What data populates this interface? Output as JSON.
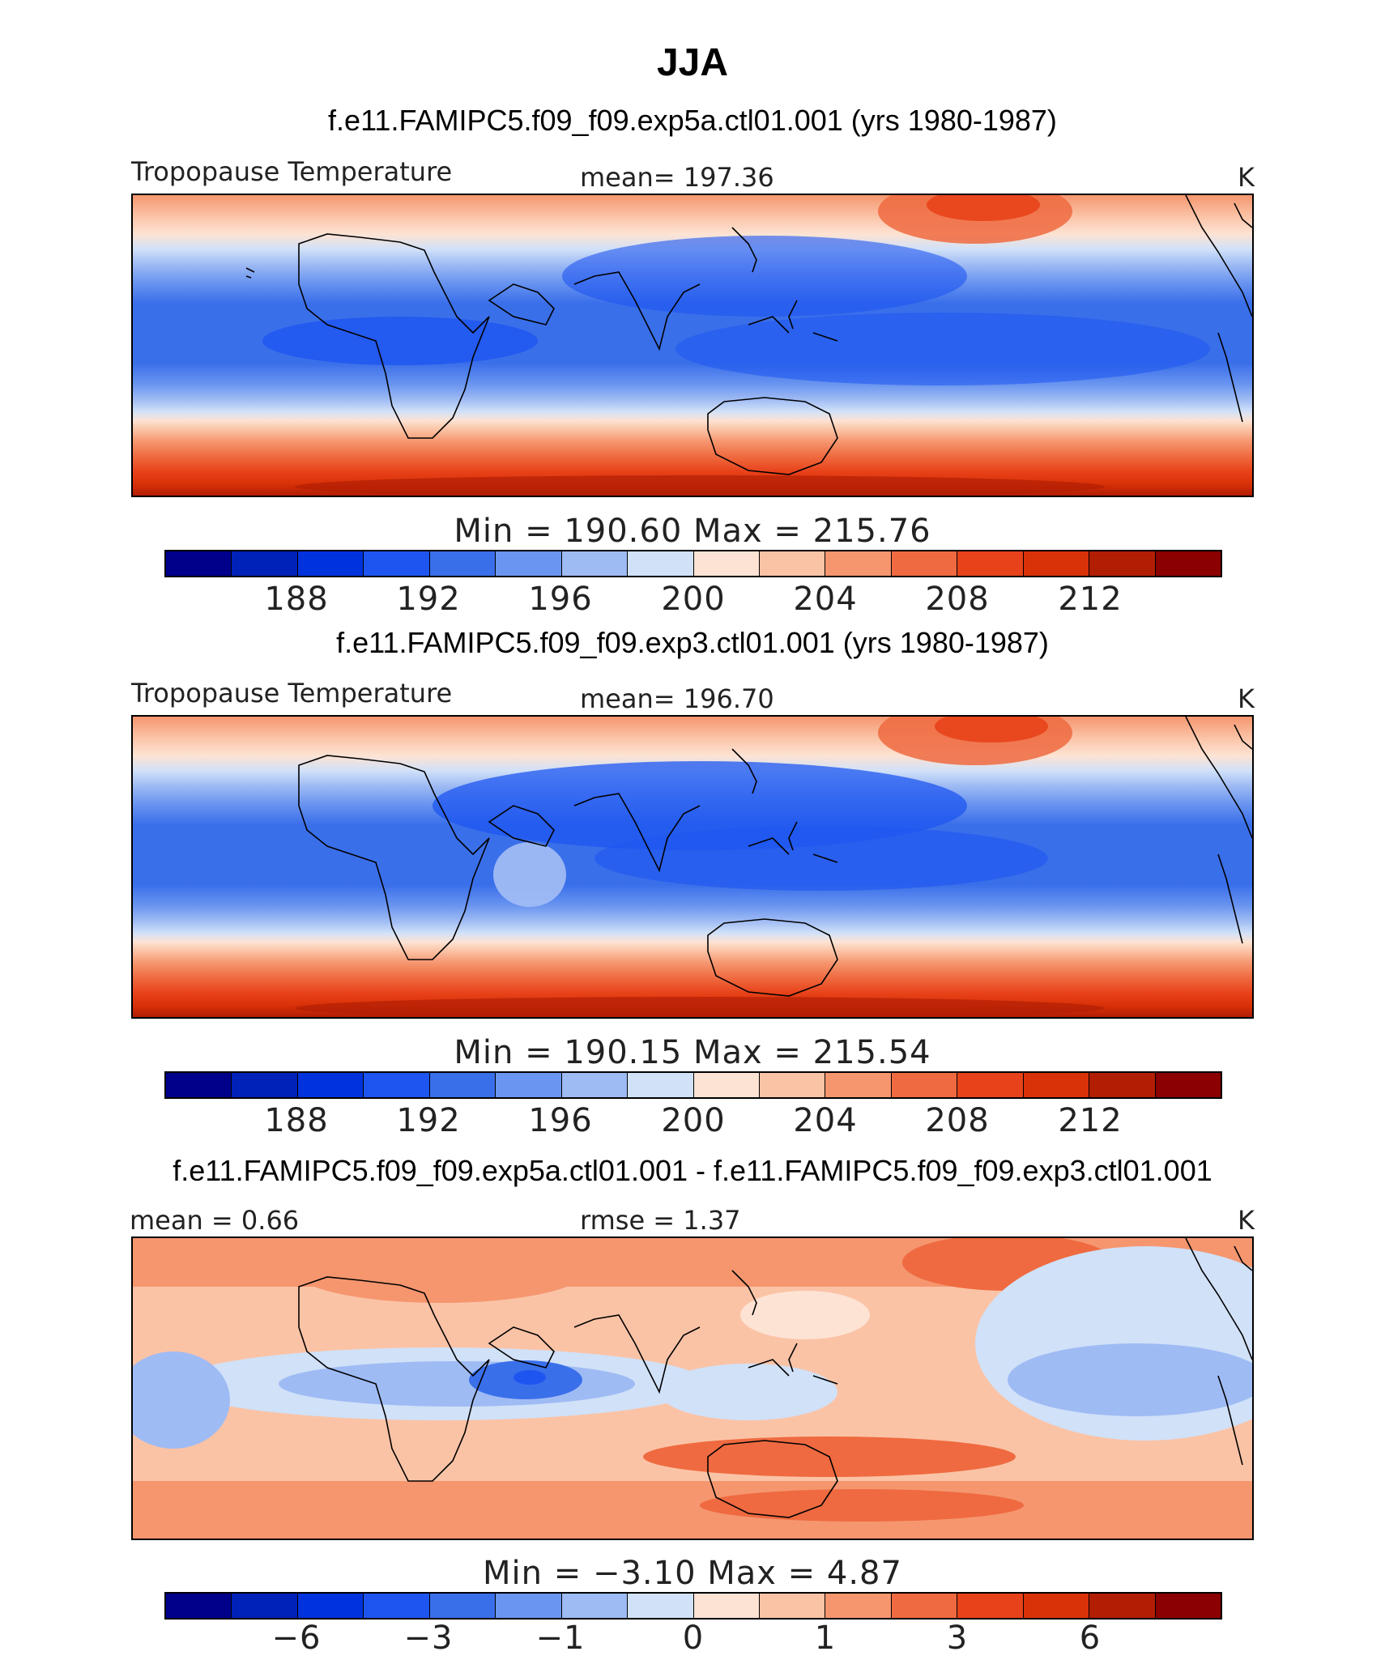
{
  "figure_title": "JJA",
  "panels": [
    {
      "case_title": "f.e11.FAMIPC5.f09_f09.exp5a.ctl01.001 (yrs 1980-1987)",
      "left_label": "Tropopause Temperature",
      "center_label": "mean=  197.36",
      "right_label": "K",
      "minmax": "Min  =  190.60  Max  =  215.76",
      "ticks": [
        "188",
        "192",
        "196",
        "200",
        "204",
        "208",
        "212"
      ]
    },
    {
      "case_title": "f.e11.FAMIPC5.f09_f09.exp3.ctl01.001 (yrs 1980-1987)",
      "left_label": "Tropopause Temperature",
      "center_label": "mean=  196.70",
      "right_label": "K",
      "minmax": "Min  =  190.15  Max  =  215.54",
      "ticks": [
        "188",
        "192",
        "196",
        "200",
        "204",
        "208",
        "212"
      ]
    },
    {
      "case_title": "f.e11.FAMIPC5.f09_f09.exp5a.ctl01.001 - f.e11.FAMIPC5.f09_f09.exp3.ctl01.001",
      "left_label": "mean  =    0.66",
      "center_label": "rmse  =    1.37",
      "right_label": "K",
      "minmax": "Min  =   −3.10  Max  =     4.87",
      "ticks": [
        "−6",
        "−3",
        "−1",
        "0",
        "1",
        "3",
        "6"
      ]
    }
  ],
  "colors": {
    "palette": [
      "#00008b",
      "#0022b8",
      "#0033dd",
      "#1e55f0",
      "#3a6fea",
      "#6a95f0",
      "#9fbbf4",
      "#d0e1f8",
      "#fde3d4",
      "#fbc3a6",
      "#f5966f",
      "#ef6a40",
      "#e8421a",
      "#d93208",
      "#b21e04",
      "#8b0000"
    ]
  },
  "chart_data": {
    "type": "map-contour",
    "season": "JJA",
    "variable": "Tropopause Temperature",
    "units": "K",
    "fields": [
      {
        "name": "f.e11.FAMIPC5.f09_f09.exp5a.ctl01.001",
        "years": "1980-1987",
        "mean": 197.36,
        "min": 190.6,
        "max": 215.76,
        "contour_ticks": [
          188,
          192,
          196,
          200,
          204,
          208,
          212
        ]
      },
      {
        "name": "f.e11.FAMIPC5.f09_f09.exp3.ctl01.001",
        "years": "1980-1987",
        "mean": 196.7,
        "min": 190.15,
        "max": 215.54,
        "contour_ticks": [
          188,
          192,
          196,
          200,
          204,
          208,
          212
        ]
      },
      {
        "name": "difference",
        "mean": 0.66,
        "rmse": 1.37,
        "min": -3.1,
        "max": 4.87,
        "contour_ticks": [
          -6,
          -3,
          -1,
          0,
          1,
          3,
          6
        ]
      }
    ]
  }
}
